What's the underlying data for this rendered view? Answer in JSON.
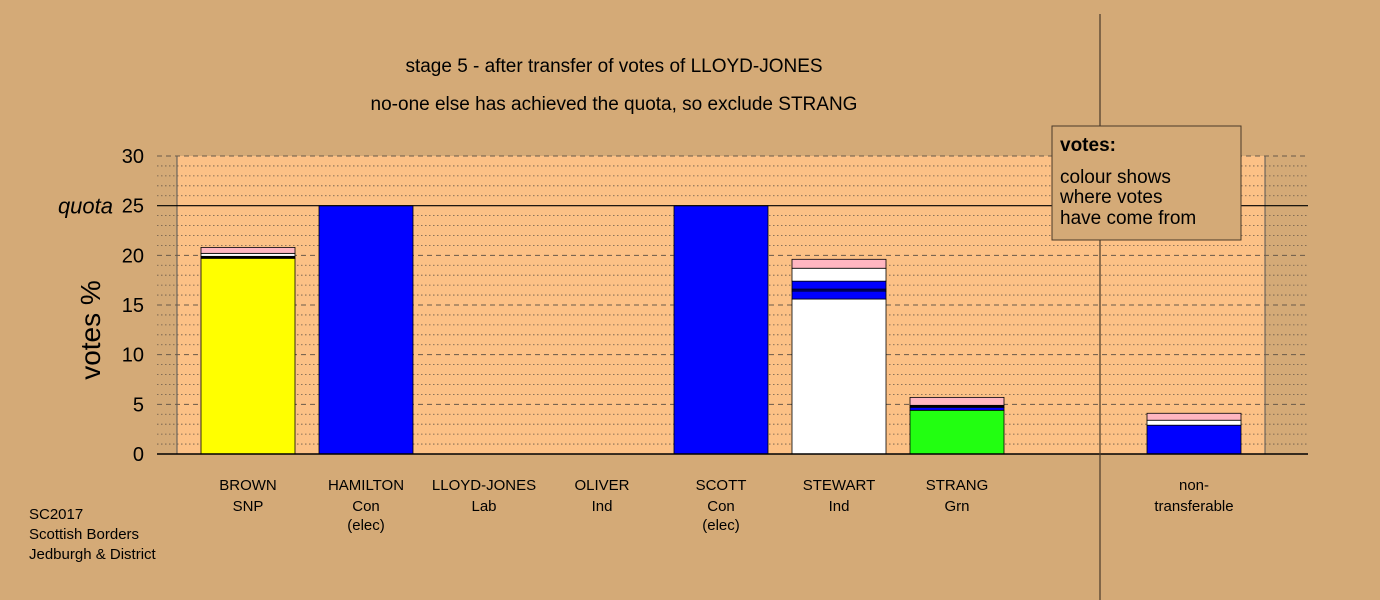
{
  "chart_data": {
    "type": "bar",
    "stacked": true,
    "title": "stage 5 - after transfer of votes of LLOYD-JONES",
    "subtitle": "no-one else has achieved the quota, so exclude STRANG",
    "ylabel": "votes %",
    "ylim": [
      0,
      30
    ],
    "yticks": [
      0,
      5,
      10,
      15,
      20,
      25,
      30
    ],
    "quota": 25,
    "quota_label": "quota",
    "grid": true,
    "legend": {
      "title": "votes:",
      "lines": [
        "colour shows",
        "where votes",
        "have come from"
      ],
      "placement": "top-right"
    },
    "colors": {
      "yellow": "#ffff00",
      "blue": "#0000ff",
      "white": "#ffffff",
      "green": "#22ff11",
      "pink": "#ffb6c1",
      "navy": "#000080",
      "black": "#000000",
      "plot_bg": "#fcc186",
      "page_bg": "#d4aa77"
    },
    "candidates": [
      {
        "name": "BROWN",
        "party": "SNP",
        "note": "",
        "segments": [
          {
            "color": "yellow",
            "value": 19.7
          },
          {
            "color": "black",
            "value": 0.2
          },
          {
            "color": "white",
            "value": 0.3
          },
          {
            "color": "pink",
            "value": 0.6
          }
        ]
      },
      {
        "name": "HAMILTON",
        "party": "Con",
        "note": "(elec)",
        "segments": [
          {
            "color": "blue",
            "value": 25.0
          }
        ]
      },
      {
        "name": "LLOYD-JONES",
        "party": "Lab",
        "note": "",
        "segments": []
      },
      {
        "name": "OLIVER",
        "party": "Ind",
        "note": "",
        "segments": []
      },
      {
        "name": "SCOTT",
        "party": "Con",
        "note": "(elec)",
        "segments": [
          {
            "color": "blue",
            "value": 25.0
          }
        ]
      },
      {
        "name": "STEWART",
        "party": "Ind",
        "note": "",
        "segments": [
          {
            "color": "white",
            "value": 15.6
          },
          {
            "color": "blue",
            "value": 0.8
          },
          {
            "color": "navy",
            "value": 0.2
          },
          {
            "color": "blue",
            "value": 0.8
          },
          {
            "color": "white",
            "value": 1.3
          },
          {
            "color": "pink",
            "value": 0.9
          }
        ]
      },
      {
        "name": "STRANG",
        "party": "Grn",
        "note": "",
        "segments": [
          {
            "color": "green",
            "value": 4.4
          },
          {
            "color": "blue",
            "value": 0.3
          },
          {
            "color": "black",
            "value": 0.2
          },
          {
            "color": "pink",
            "value": 0.8
          }
        ]
      },
      {
        "name": "non-",
        "party": "transferable",
        "note": "",
        "segments": [
          {
            "color": "blue",
            "value": 2.9
          },
          {
            "color": "white",
            "value": 0.5
          },
          {
            "color": "pink",
            "value": 0.7
          }
        ]
      }
    ]
  },
  "footer": {
    "line1": "SC2017",
    "line2": "Scottish Borders",
    "line3": "Jedburgh & District"
  }
}
